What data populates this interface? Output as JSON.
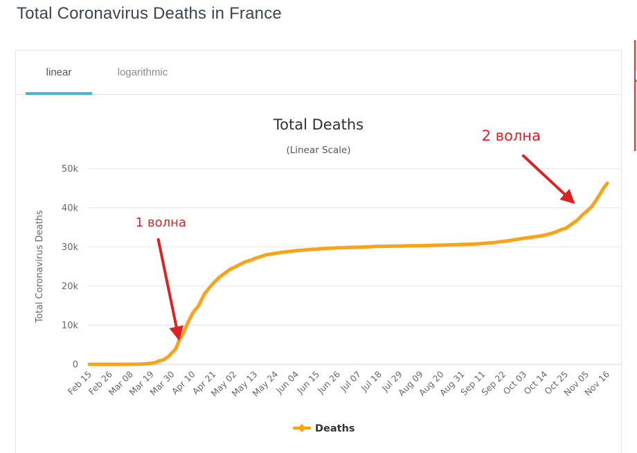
{
  "page": {
    "title": "Total Coronavirus Deaths in France"
  },
  "tabs": [
    {
      "label": "linear",
      "active": true
    },
    {
      "label": "logarithmic",
      "active": false
    }
  ],
  "colors": {
    "tab_active_underline": "#41b8d6",
    "series_line": "#f8a31a",
    "annotation_red": "#dd2222",
    "grid_line": "#e6e6e6",
    "axis_line": "#d0d0d0",
    "tick_label": "#666666",
    "chart_title": "#303030",
    "chart_subtitle": "#555555",
    "legend_text": "#333333"
  },
  "chart_data": {
    "type": "line",
    "title": "Total Deaths",
    "subtitle": "(Linear Scale)",
    "yaxis_title": "Total Coronavirus Deaths",
    "ylim": [
      0,
      50000
    ],
    "ytick_step": 10000,
    "ytick_labels": [
      "0",
      "10k",
      "20k",
      "30k",
      "40k",
      "50k"
    ],
    "grid": true,
    "legend_position": "bottom",
    "xtick_labels": [
      "Feb 15",
      "Feb 26",
      "Mar 08",
      "Mar 19",
      "Mar 30",
      "Apr 10",
      "Apr 21",
      "May 02",
      "May 13",
      "May 24",
      "Jun 04",
      "Jun 15",
      "Jun 26",
      "Jul 07",
      "Jul 18",
      "Jul 29",
      "Aug 09",
      "Aug 20",
      "Aug 31",
      "Sep 11",
      "Sep 22",
      "Oct 03",
      "Oct 14",
      "Oct 25",
      "Nov 05",
      "Nov 16"
    ],
    "x_days_per_tick": 11,
    "x_total_days": 275,
    "series": [
      {
        "name": "Deaths",
        "color": "#f8a31a",
        "points": [
          [
            0,
            1
          ],
          [
            8,
            1
          ],
          [
            12,
            2
          ],
          [
            15,
            2
          ],
          [
            18,
            4
          ],
          [
            22,
            19
          ],
          [
            26,
            48
          ],
          [
            30,
            148
          ],
          [
            33,
            264
          ],
          [
            35,
            450
          ],
          [
            37,
            860
          ],
          [
            39,
            1100
          ],
          [
            40,
            1331
          ],
          [
            42,
            1995
          ],
          [
            44,
            3024
          ],
          [
            46,
            4032
          ],
          [
            48,
            6507
          ],
          [
            50,
            8078
          ],
          [
            52,
            10328
          ],
          [
            55,
            13197
          ],
          [
            58,
            14967
          ],
          [
            61,
            17920
          ],
          [
            64,
            19718
          ],
          [
            66,
            20796
          ],
          [
            69,
            22245
          ],
          [
            72,
            23293
          ],
          [
            75,
            24376
          ],
          [
            77,
            24760
          ],
          [
            80,
            25531
          ],
          [
            83,
            26230
          ],
          [
            86,
            26643
          ],
          [
            88,
            27074
          ],
          [
            91,
            27529
          ],
          [
            94,
            28022
          ],
          [
            97,
            28215
          ],
          [
            99,
            28367
          ],
          [
            102,
            28596
          ],
          [
            105,
            28771
          ],
          [
            108,
            28940
          ],
          [
            110,
            29065
          ],
          [
            113,
            29155
          ],
          [
            116,
            29296
          ],
          [
            119,
            29398
          ],
          [
            121,
            29436
          ],
          [
            124,
            29575
          ],
          [
            127,
            29640
          ],
          [
            130,
            29731
          ],
          [
            132,
            29778
          ],
          [
            135,
            29813
          ],
          [
            138,
            29875
          ],
          [
            141,
            29896
          ],
          [
            143,
            29933
          ],
          [
            146,
            29979
          ],
          [
            149,
            30043
          ],
          [
            152,
            30138
          ],
          [
            154,
            30152
          ],
          [
            157,
            30165
          ],
          [
            160,
            30182
          ],
          [
            163,
            30209
          ],
          [
            165,
            30238
          ],
          [
            168,
            30265
          ],
          [
            171,
            30296
          ],
          [
            174,
            30324
          ],
          [
            176,
            30327
          ],
          [
            179,
            30371
          ],
          [
            182,
            30409
          ],
          [
            185,
            30434
          ],
          [
            187,
            30468
          ],
          [
            190,
            30513
          ],
          [
            193,
            30544
          ],
          [
            196,
            30602
          ],
          [
            198,
            30635
          ],
          [
            201,
            30670
          ],
          [
            204,
            30726
          ],
          [
            207,
            30813
          ],
          [
            209,
            30910
          ],
          [
            212,
            31006
          ],
          [
            215,
            31103
          ],
          [
            218,
            31338
          ],
          [
            220,
            31416
          ],
          [
            223,
            31603
          ],
          [
            226,
            31893
          ],
          [
            229,
            32091
          ],
          [
            231,
            32230
          ],
          [
            234,
            32403
          ],
          [
            237,
            32630
          ],
          [
            240,
            32825
          ],
          [
            242,
            33037
          ],
          [
            245,
            33392
          ],
          [
            248,
            33885
          ],
          [
            251,
            34508
          ],
          [
            253,
            34761
          ],
          [
            256,
            35785
          ],
          [
            259,
            36788
          ],
          [
            262,
            38289
          ],
          [
            264,
            39037
          ],
          [
            267,
            40439
          ],
          [
            270,
            42600
          ],
          [
            273,
            44998
          ],
          [
            275,
            46273
          ]
        ]
      }
    ],
    "legend": [
      {
        "name": "Deaths",
        "color": "#f8a31a"
      }
    ],
    "annotations": [
      {
        "text": "1 волна",
        "color": "#dd2222",
        "font_size": 18,
        "label_day": 38,
        "label_value": 35200,
        "arrow_from": {
          "day": 36.5,
          "value": 32200
        },
        "arrow_to": {
          "day": 47.5,
          "value": 6600
        }
      },
      {
        "text": "2 волна",
        "color": "#dd2222",
        "font_size": 21,
        "label_day": 224,
        "label_value": 57200,
        "arrow_from": {
          "day": 230,
          "value": 53500
        },
        "arrow_to": {
          "day": 257,
          "value": 41400
        }
      }
    ]
  }
}
